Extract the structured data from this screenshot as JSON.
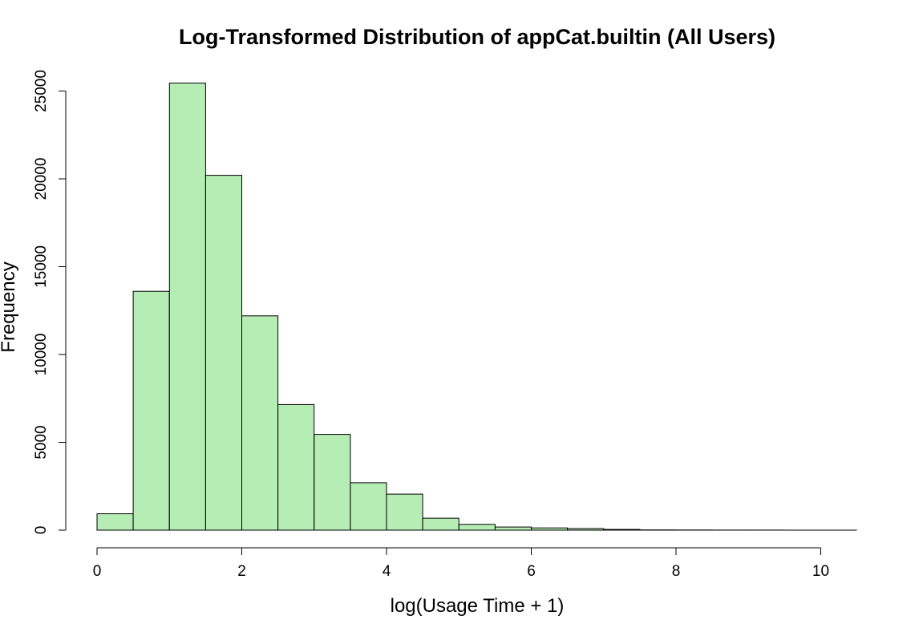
{
  "chart_data": {
    "type": "bar",
    "title": "Log-Transformed Distribution of appCat.builtin (All Users)",
    "xlabel": "log(Usage Time + 1)",
    "ylabel": "Frequency",
    "bar_color": "#b5edb5",
    "border_color": "#000000",
    "xlim": [
      0,
      10.5
    ],
    "ylim": [
      0,
      25500
    ],
    "xticks": [
      0,
      2,
      4,
      6,
      8,
      10
    ],
    "yticks": [
      0,
      5000,
      10000,
      15000,
      20000,
      25000
    ],
    "bins": [
      {
        "x0": 0.0,
        "x1": 0.5,
        "count": 930
      },
      {
        "x0": 0.5,
        "x1": 1.0,
        "count": 13600
      },
      {
        "x0": 1.0,
        "x1": 1.5,
        "count": 25450
      },
      {
        "x0": 1.5,
        "x1": 2.0,
        "count": 20200
      },
      {
        "x0": 2.0,
        "x1": 2.5,
        "count": 12200
      },
      {
        "x0": 2.5,
        "x1": 3.0,
        "count": 7150
      },
      {
        "x0": 3.0,
        "x1": 3.5,
        "count": 5450
      },
      {
        "x0": 3.5,
        "x1": 4.0,
        "count": 2700
      },
      {
        "x0": 4.0,
        "x1": 4.5,
        "count": 2050
      },
      {
        "x0": 4.5,
        "x1": 5.0,
        "count": 680
      },
      {
        "x0": 5.0,
        "x1": 5.5,
        "count": 330
      },
      {
        "x0": 5.5,
        "x1": 6.0,
        "count": 180
      },
      {
        "x0": 6.0,
        "x1": 6.5,
        "count": 130
      },
      {
        "x0": 6.5,
        "x1": 7.0,
        "count": 90
      },
      {
        "x0": 7.0,
        "x1": 7.5,
        "count": 40
      },
      {
        "x0": 7.5,
        "x1": 8.0,
        "count": 15
      },
      {
        "x0": 8.0,
        "x1": 8.5,
        "count": 8
      },
      {
        "x0": 8.5,
        "x1": 9.0,
        "count": 5
      },
      {
        "x0": 9.0,
        "x1": 9.5,
        "count": 3
      },
      {
        "x0": 9.5,
        "x1": 10.0,
        "count": 2
      },
      {
        "x0": 10.0,
        "x1": 10.5,
        "count": 1
      }
    ]
  }
}
